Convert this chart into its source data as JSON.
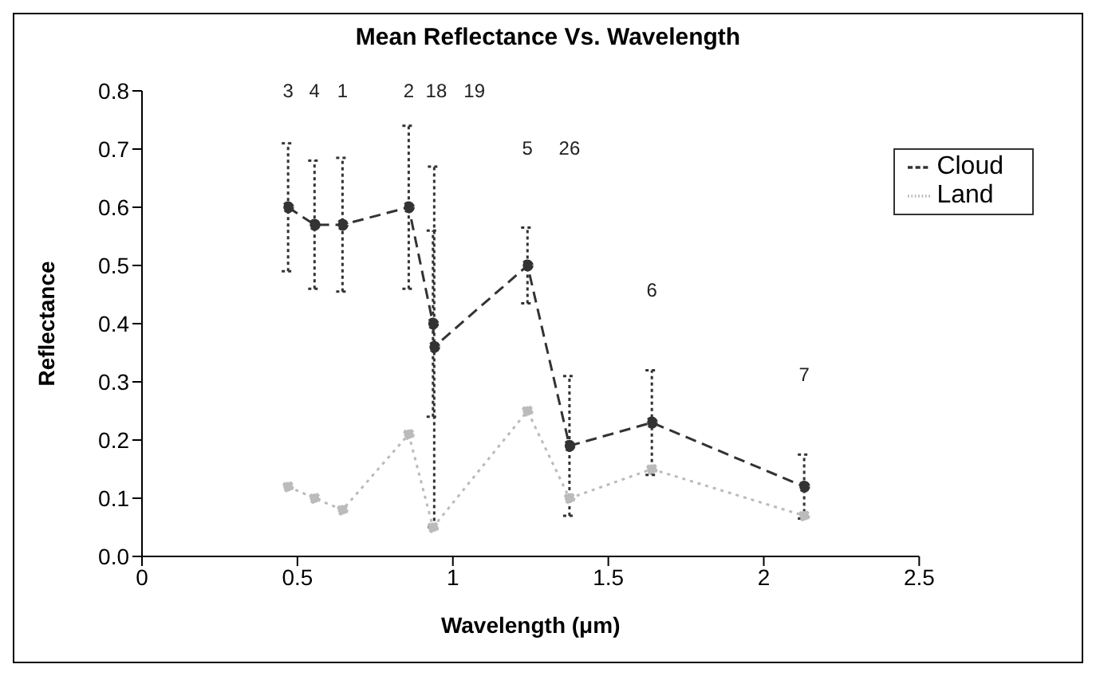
{
  "chart_data": {
    "type": "line",
    "title": "Mean Reflectance Vs. Wavelength",
    "xlabel": "Wavelength (μm)",
    "ylabel": "Reflectance",
    "xlim": [
      0,
      2.5
    ],
    "xticks": [
      0,
      0.5,
      1,
      1.5,
      2,
      2.5
    ],
    "ylim": [
      0,
      0.8
    ],
    "yticks": [
      {
        "value": 0,
        "label": "0.0"
      },
      0.1,
      0.2,
      0.3,
      0.4,
      0.5,
      0.6,
      0.7,
      0.8
    ],
    "grid": false,
    "legend": "top right",
    "marker": "circle",
    "series": [
      {
        "name": "Cloud",
        "color": "#333333",
        "line_style": "dashed",
        "x": [
          0.47,
          0.555,
          0.645,
          0.858,
          0.936,
          0.94,
          1.24,
          1.375,
          1.64,
          2.13
        ],
        "values": [
          0.6,
          0.57,
          0.57,
          0.6,
          0.4,
          0.36,
          0.5,
          0.19,
          0.23,
          0.12
        ],
        "errors": [
          0.11,
          0.11,
          0.115,
          0.14,
          0.16,
          0.31,
          0.065,
          0.12,
          0.09,
          0.055
        ]
      },
      {
        "name": "Land",
        "color": "#bbbbbb",
        "line_style": "dotted",
        "x": [
          0.47,
          0.555,
          0.645,
          0.858,
          0.936,
          1.24,
          1.375,
          1.64,
          2.13
        ],
        "values": [
          0.12,
          0.1,
          0.08,
          0.21,
          0.05,
          0.25,
          0.1,
          0.15,
          0.07
        ]
      }
    ],
    "annotations": [
      "3",
      "4",
      "1",
      "2",
      "18",
      "19",
      "5",
      "26",
      "6",
      "7"
    ]
  }
}
